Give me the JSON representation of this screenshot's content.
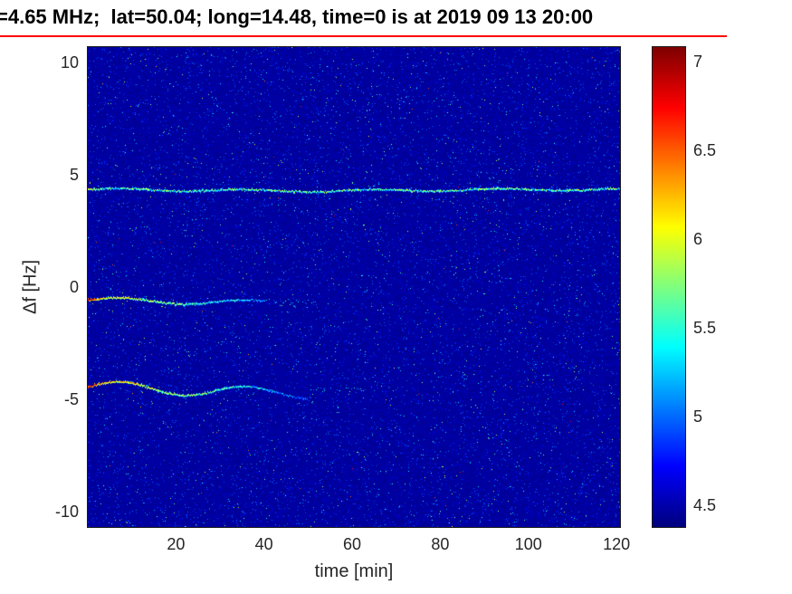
{
  "chart_data": {
    "type": "heatmap",
    "title": "=4.65 MHz;  lat=50.04; long=14.48, time=0 is at 2019 09 13 20:00",
    "xlabel": "time [min]",
    "ylabel": "Δf [Hz]",
    "xlim": [
      0,
      120.8
    ],
    "ylim": [
      -10.7,
      10.7
    ],
    "x_ticks": [
      20,
      40,
      60,
      80,
      100,
      120
    ],
    "y_ticks": [
      10,
      5,
      0,
      -5,
      -10
    ],
    "colormap": "jet",
    "color_range": [
      4.38,
      7.08
    ],
    "colorbar_ticks": [
      4.5,
      5,
      5.5,
      6,
      6.5,
      7
    ],
    "background_value": 4.45,
    "grid": false,
    "legend": "none",
    "noise": {
      "base_min": 4.4,
      "base_spread": 0.13,
      "light_speck_prob": 0.045,
      "cyan_speck_prob": 0.006,
      "bright_speck_prob": 0.00045
    },
    "features": [
      {
        "name": "carrier-line",
        "y_hz": 4.35,
        "x_start_min": 0,
        "x_end_min": 120.8,
        "intensity_start": 5.55,
        "intensity_end": 5.6,
        "variation": 0.85,
        "wave_amp_hz": 0.05,
        "sparse_tail_min": 0
      },
      {
        "name": "upper-doppler-trace",
        "y_hz": -0.62,
        "x_start_min": 0,
        "x_end_min": 40,
        "intensity_start": 6.3,
        "intensity_end": 5.1,
        "variation": 0.55,
        "wave_amp_hz": 0.12,
        "sparse_tail_min": 52
      },
      {
        "name": "lower-doppler-trace",
        "y_hz": -4.55,
        "x_start_min": 0,
        "x_end_min": 50,
        "intensity_start": 6.4,
        "intensity_end": 5.0,
        "variation": 0.55,
        "wave_amp_hz": 0.25,
        "sparse_tail_min": 63
      }
    ]
  },
  "colors": {
    "title_text": "#000000",
    "title_rule": "#ff0000",
    "axis_text": "#262626",
    "page_background": "#ffffff"
  }
}
